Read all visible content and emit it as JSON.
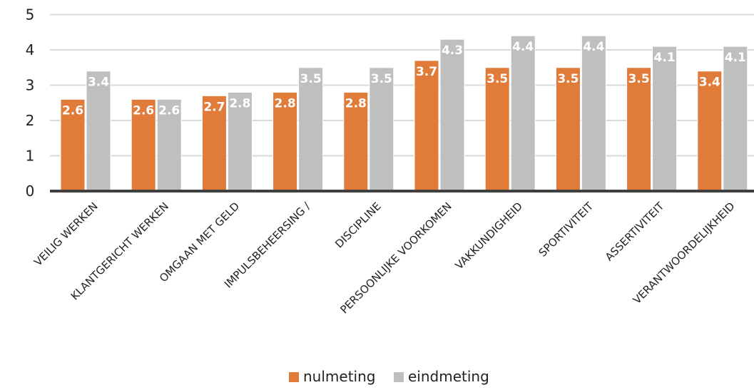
{
  "chart_data": {
    "type": "bar",
    "categories": [
      "VEILIG WERKEN",
      "KLANTGERICHT WERKEN",
      "OMGAAN MET GELD",
      "IMPULSBEHEERSING /",
      "DISCIPLINE",
      "PERSOONLIJKE VOORKOMEN",
      "VAKKUNDIGHEID",
      "SPORTIVITEIT",
      "ASSERTIVITEIT",
      "VERANTWOORDELIJKHEID"
    ],
    "series": [
      {
        "name": "nulmeting",
        "color": "#e07b39",
        "values": [
          2.6,
          2.6,
          2.7,
          2.8,
          2.8,
          3.7,
          3.5,
          3.5,
          3.5,
          3.4
        ]
      },
      {
        "name": "eindmeting",
        "color": "#bfbfbf",
        "values": [
          3.4,
          2.6,
          2.8,
          3.5,
          3.5,
          4.3,
          4.4,
          4.4,
          4.1,
          4.1
        ]
      }
    ],
    "ylim": [
      0,
      5
    ],
    "yticks": [
      "0",
      "1",
      "2",
      "3",
      "4",
      "5"
    ],
    "grid": true,
    "legend_position": "bottom"
  }
}
